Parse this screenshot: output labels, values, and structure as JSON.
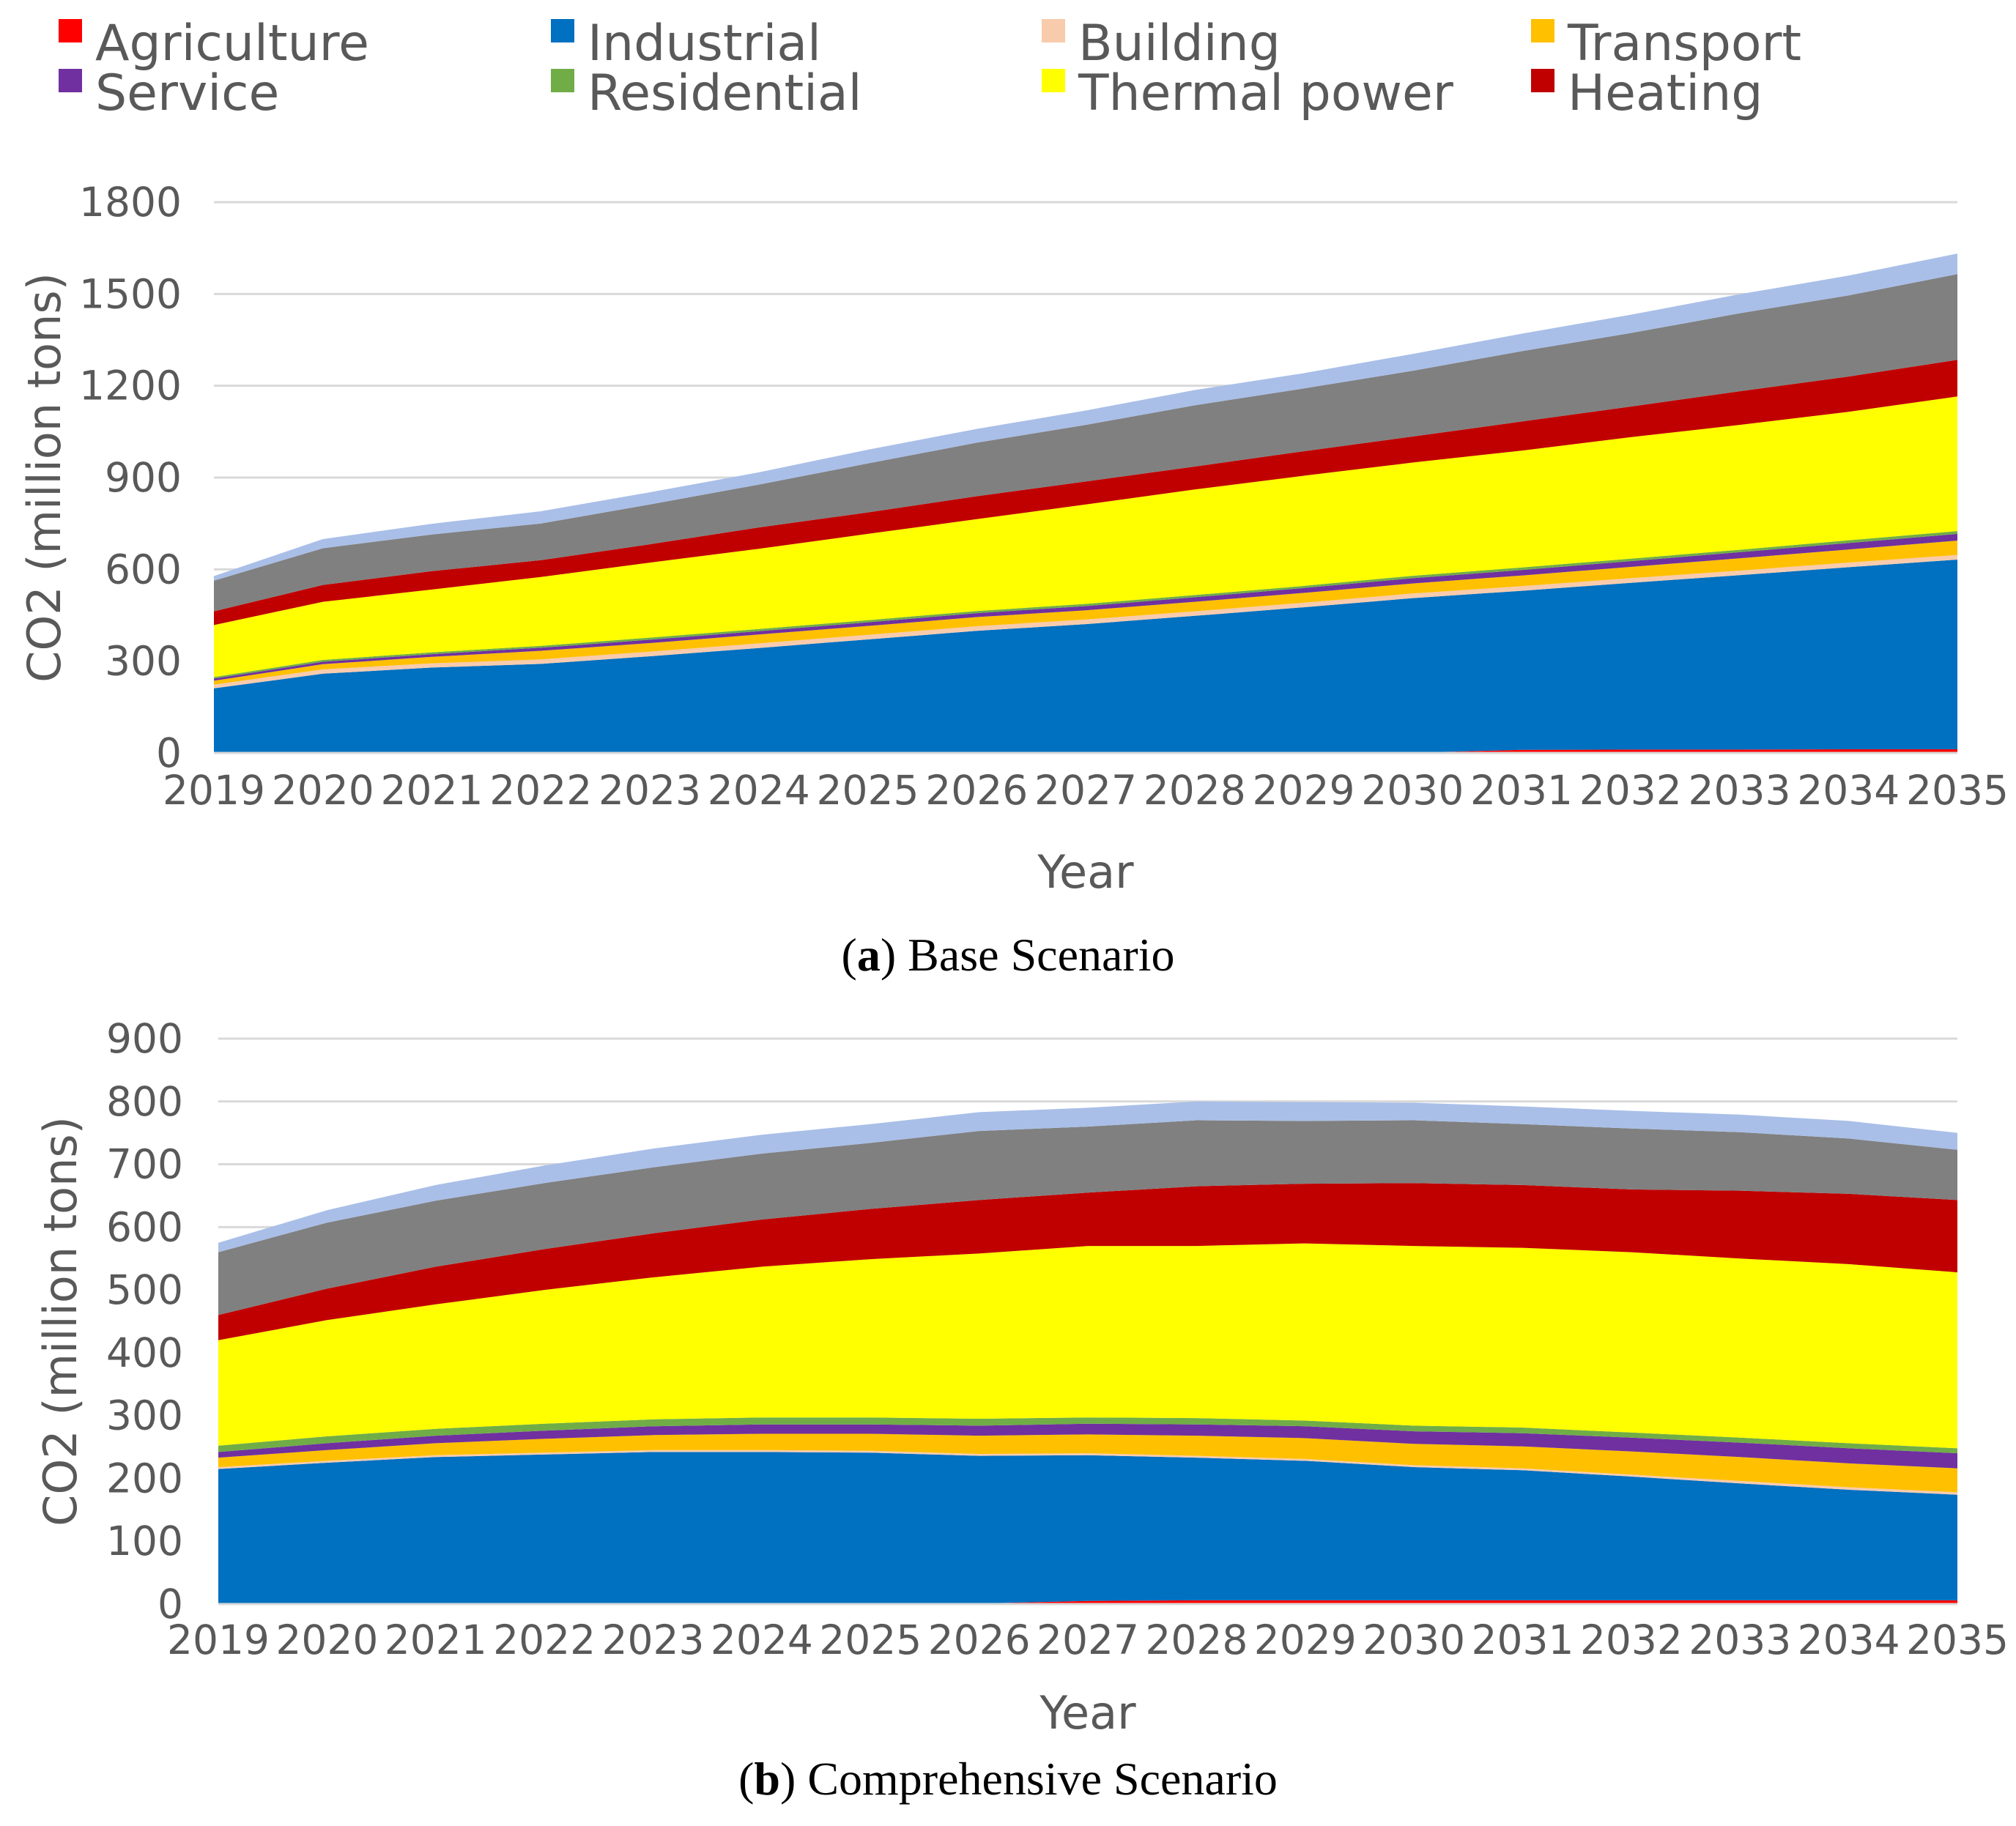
{
  "legend": [
    {
      "label": "Agriculture",
      "color": "#ff0000"
    },
    {
      "label": "Industrial",
      "color": "#0070c0"
    },
    {
      "label": "Building",
      "color": "#f8cbad"
    },
    {
      "label": "Transport",
      "color": "#ffc000"
    },
    {
      "label": "Service",
      "color": "#7030a0"
    },
    {
      "label": "Residential",
      "color": "#70ad47"
    },
    {
      "label": "Thermal power",
      "color": "#ffff00"
    },
    {
      "label": "Heating",
      "color": "#c00000"
    }
  ],
  "extra_layers": [
    {
      "name": "unlabeled-grey",
      "color": "#808080"
    },
    {
      "name": "unlabeled-light-blue",
      "color": "#a9bfe8"
    }
  ],
  "chart_data": [
    {
      "type": "area",
      "stacked": true,
      "caption_letter": "a",
      "caption_text": " Base Scenario",
      "xlabel": "Year",
      "ylabel": "CO2 (million tons)",
      "ylim": [
        0,
        1800
      ],
      "yticks": [
        0,
        300,
        600,
        900,
        1200,
        1500,
        1800
      ],
      "x": [
        2019,
        2020,
        2021,
        2022,
        2023,
        2024,
        2025,
        2026,
        2027,
        2028,
        2029,
        2030,
        2031,
        2032,
        2033,
        2034,
        2035
      ],
      "series": [
        {
          "name": "Agriculture",
          "values": [
            1,
            1,
            1,
            1,
            1,
            1,
            1,
            1,
            1,
            1,
            1,
            1,
            10,
            11,
            11,
            12,
            12
          ]
        },
        {
          "name": "Industrial",
          "values": [
            210,
            258,
            278,
            290,
            315,
            342,
            370,
            398,
            420,
            447,
            475,
            505,
            520,
            545,
            570,
            595,
            620
          ]
        },
        {
          "name": "Building",
          "values": [
            12,
            14,
            14,
            15,
            15,
            15,
            15,
            15,
            15,
            15,
            15,
            15,
            15,
            15,
            15,
            15,
            15
          ]
        },
        {
          "name": "Transport",
          "values": [
            13,
            17,
            21,
            28,
            28,
            29,
            29,
            30,
            30,
            31,
            32,
            33,
            35,
            37,
            40,
            43,
            47
          ]
        },
        {
          "name": "Service",
          "values": [
            7,
            8,
            9,
            10,
            11,
            11,
            12,
            13,
            14,
            15,
            16,
            17,
            18,
            19,
            20,
            21,
            22
          ]
        },
        {
          "name": "Residential",
          "values": [
            5,
            6,
            6,
            6,
            7,
            7,
            7,
            7,
            7,
            7,
            7,
            8,
            8,
            8,
            8,
            9,
            9
          ]
        },
        {
          "name": "Thermal power",
          "values": [
            170,
            190,
            205,
            225,
            245,
            262,
            282,
            300,
            325,
            345,
            360,
            370,
            382,
            397,
            408,
            420,
            440
          ]
        },
        {
          "name": "Heating",
          "values": [
            45,
            55,
            60,
            55,
            60,
            70,
            70,
            75,
            75,
            75,
            80,
            85,
            95,
            100,
            110,
            115,
            120
          ]
        },
        {
          "name": "unlabeled-grey",
          "values": [
            100,
            120,
            120,
            120,
            130,
            140,
            160,
            175,
            185,
            200,
            205,
            215,
            230,
            240,
            255,
            265,
            280
          ]
        },
        {
          "name": "unlabeled-light-blue",
          "values": [
            15,
            30,
            35,
            40,
            40,
            40,
            45,
            45,
            47,
            50,
            50,
            55,
            57,
            60,
            62,
            65,
            67
          ]
        }
      ]
    },
    {
      "type": "area",
      "stacked": true,
      "caption_letter": "b",
      "caption_text": " Comprehensive Scenario",
      "xlabel": "Year",
      "ylabel": "CO2 (million tons)",
      "ylim": [
        0,
        900
      ],
      "yticks": [
        0,
        100,
        200,
        300,
        400,
        500,
        600,
        700,
        800,
        900
      ],
      "x": [
        2019,
        2020,
        2021,
        2022,
        2023,
        2024,
        2025,
        2026,
        2027,
        2028,
        2029,
        2030,
        2031,
        2032,
        2033,
        2034,
        2035
      ],
      "series": [
        {
          "name": "Agriculture",
          "values": [
            1,
            1,
            1,
            1,
            1,
            1,
            1,
            1,
            5,
            6,
            6,
            6,
            6,
            6,
            6,
            6,
            6
          ]
        },
        {
          "name": "Industrial",
          "values": [
            214,
            224,
            233,
            237,
            241,
            241,
            240,
            235,
            232,
            227,
            222,
            212,
            207,
            197,
            186,
            176,
            168
          ]
        },
        {
          "name": "Building",
          "values": [
            3,
            3,
            3,
            3,
            3,
            3,
            3,
            3,
            3,
            3,
            3,
            3,
            3,
            3,
            4,
            4,
            4
          ]
        },
        {
          "name": "Transport",
          "values": [
            15,
            17,
            19,
            22,
            24,
            26,
            27,
            29,
            30,
            32,
            33,
            34,
            35,
            37,
            38,
            38,
            38
          ]
        },
        {
          "name": "Service",
          "values": [
            9,
            11,
            12,
            13,
            14,
            15,
            15,
            16,
            17,
            18,
            19,
            20,
            21,
            22,
            23,
            24,
            24
          ]
        },
        {
          "name": "Residential",
          "values": [
            10,
            11,
            11,
            11,
            11,
            11,
            11,
            11,
            10,
            10,
            9,
            9,
            9,
            8,
            8,
            8,
            8
          ]
        },
        {
          "name": "Thermal power",
          "values": [
            168,
            185,
            198,
            213,
            226,
            240,
            252,
            263,
            273,
            274,
            282,
            286,
            286,
            287,
            285,
            285,
            280
          ]
        },
        {
          "name": "Heating",
          "values": [
            40,
            50,
            60,
            65,
            70,
            75,
            80,
            85,
            85,
            95,
            95,
            100,
            100,
            100,
            108,
            112,
            115
          ]
        },
        {
          "name": "unlabeled-grey",
          "values": [
            100,
            105,
            105,
            105,
            105,
            105,
            105,
            110,
            105,
            105,
            100,
            100,
            97,
            97,
            93,
            88,
            80
          ]
        },
        {
          "name": "unlabeled-light-blue",
          "values": [
            15,
            20,
            25,
            28,
            30,
            30,
            30,
            30,
            30,
            30,
            30,
            28,
            28,
            28,
            28,
            28,
            27
          ]
        }
      ]
    }
  ]
}
